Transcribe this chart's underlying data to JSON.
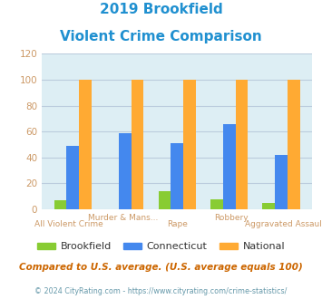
{
  "title_line1": "2019 Brookfield",
  "title_line2": "Violent Crime Comparison",
  "title_color": "#2090d0",
  "categories": [
    "All Violent Crime",
    "Murder & Mans...",
    "Rape",
    "Robbery",
    "Aggravated Assault"
  ],
  "top_labels": [
    "",
    "Murder & Mans...",
    "",
    "Robbery",
    ""
  ],
  "bottom_labels": [
    "All Violent Crime",
    "",
    "Rape",
    "",
    "Aggravated Assault"
  ],
  "brookfield": [
    7,
    0,
    14,
    8,
    5
  ],
  "connecticut": [
    49,
    59,
    51,
    66,
    42
  ],
  "national": [
    100,
    100,
    100,
    100,
    100
  ],
  "colors": {
    "brookfield": "#88cc33",
    "connecticut": "#4488ee",
    "national": "#ffaa33"
  },
  "ylim": [
    0,
    120
  ],
  "yticks": [
    0,
    20,
    40,
    60,
    80,
    100,
    120
  ],
  "background_color": "#ffffff",
  "plot_bg": "#ddeef4",
  "grid_color": "#bbccdd",
  "footnote": "Compared to U.S. average. (U.S. average equals 100)",
  "footnote_color": "#cc6600",
  "copyright": "© 2024 CityRating.com - https://www.cityrating.com/crime-statistics/",
  "copyright_color": "#6699aa",
  "tick_label_color": "#cc9966",
  "legend_label_color": "#333333"
}
